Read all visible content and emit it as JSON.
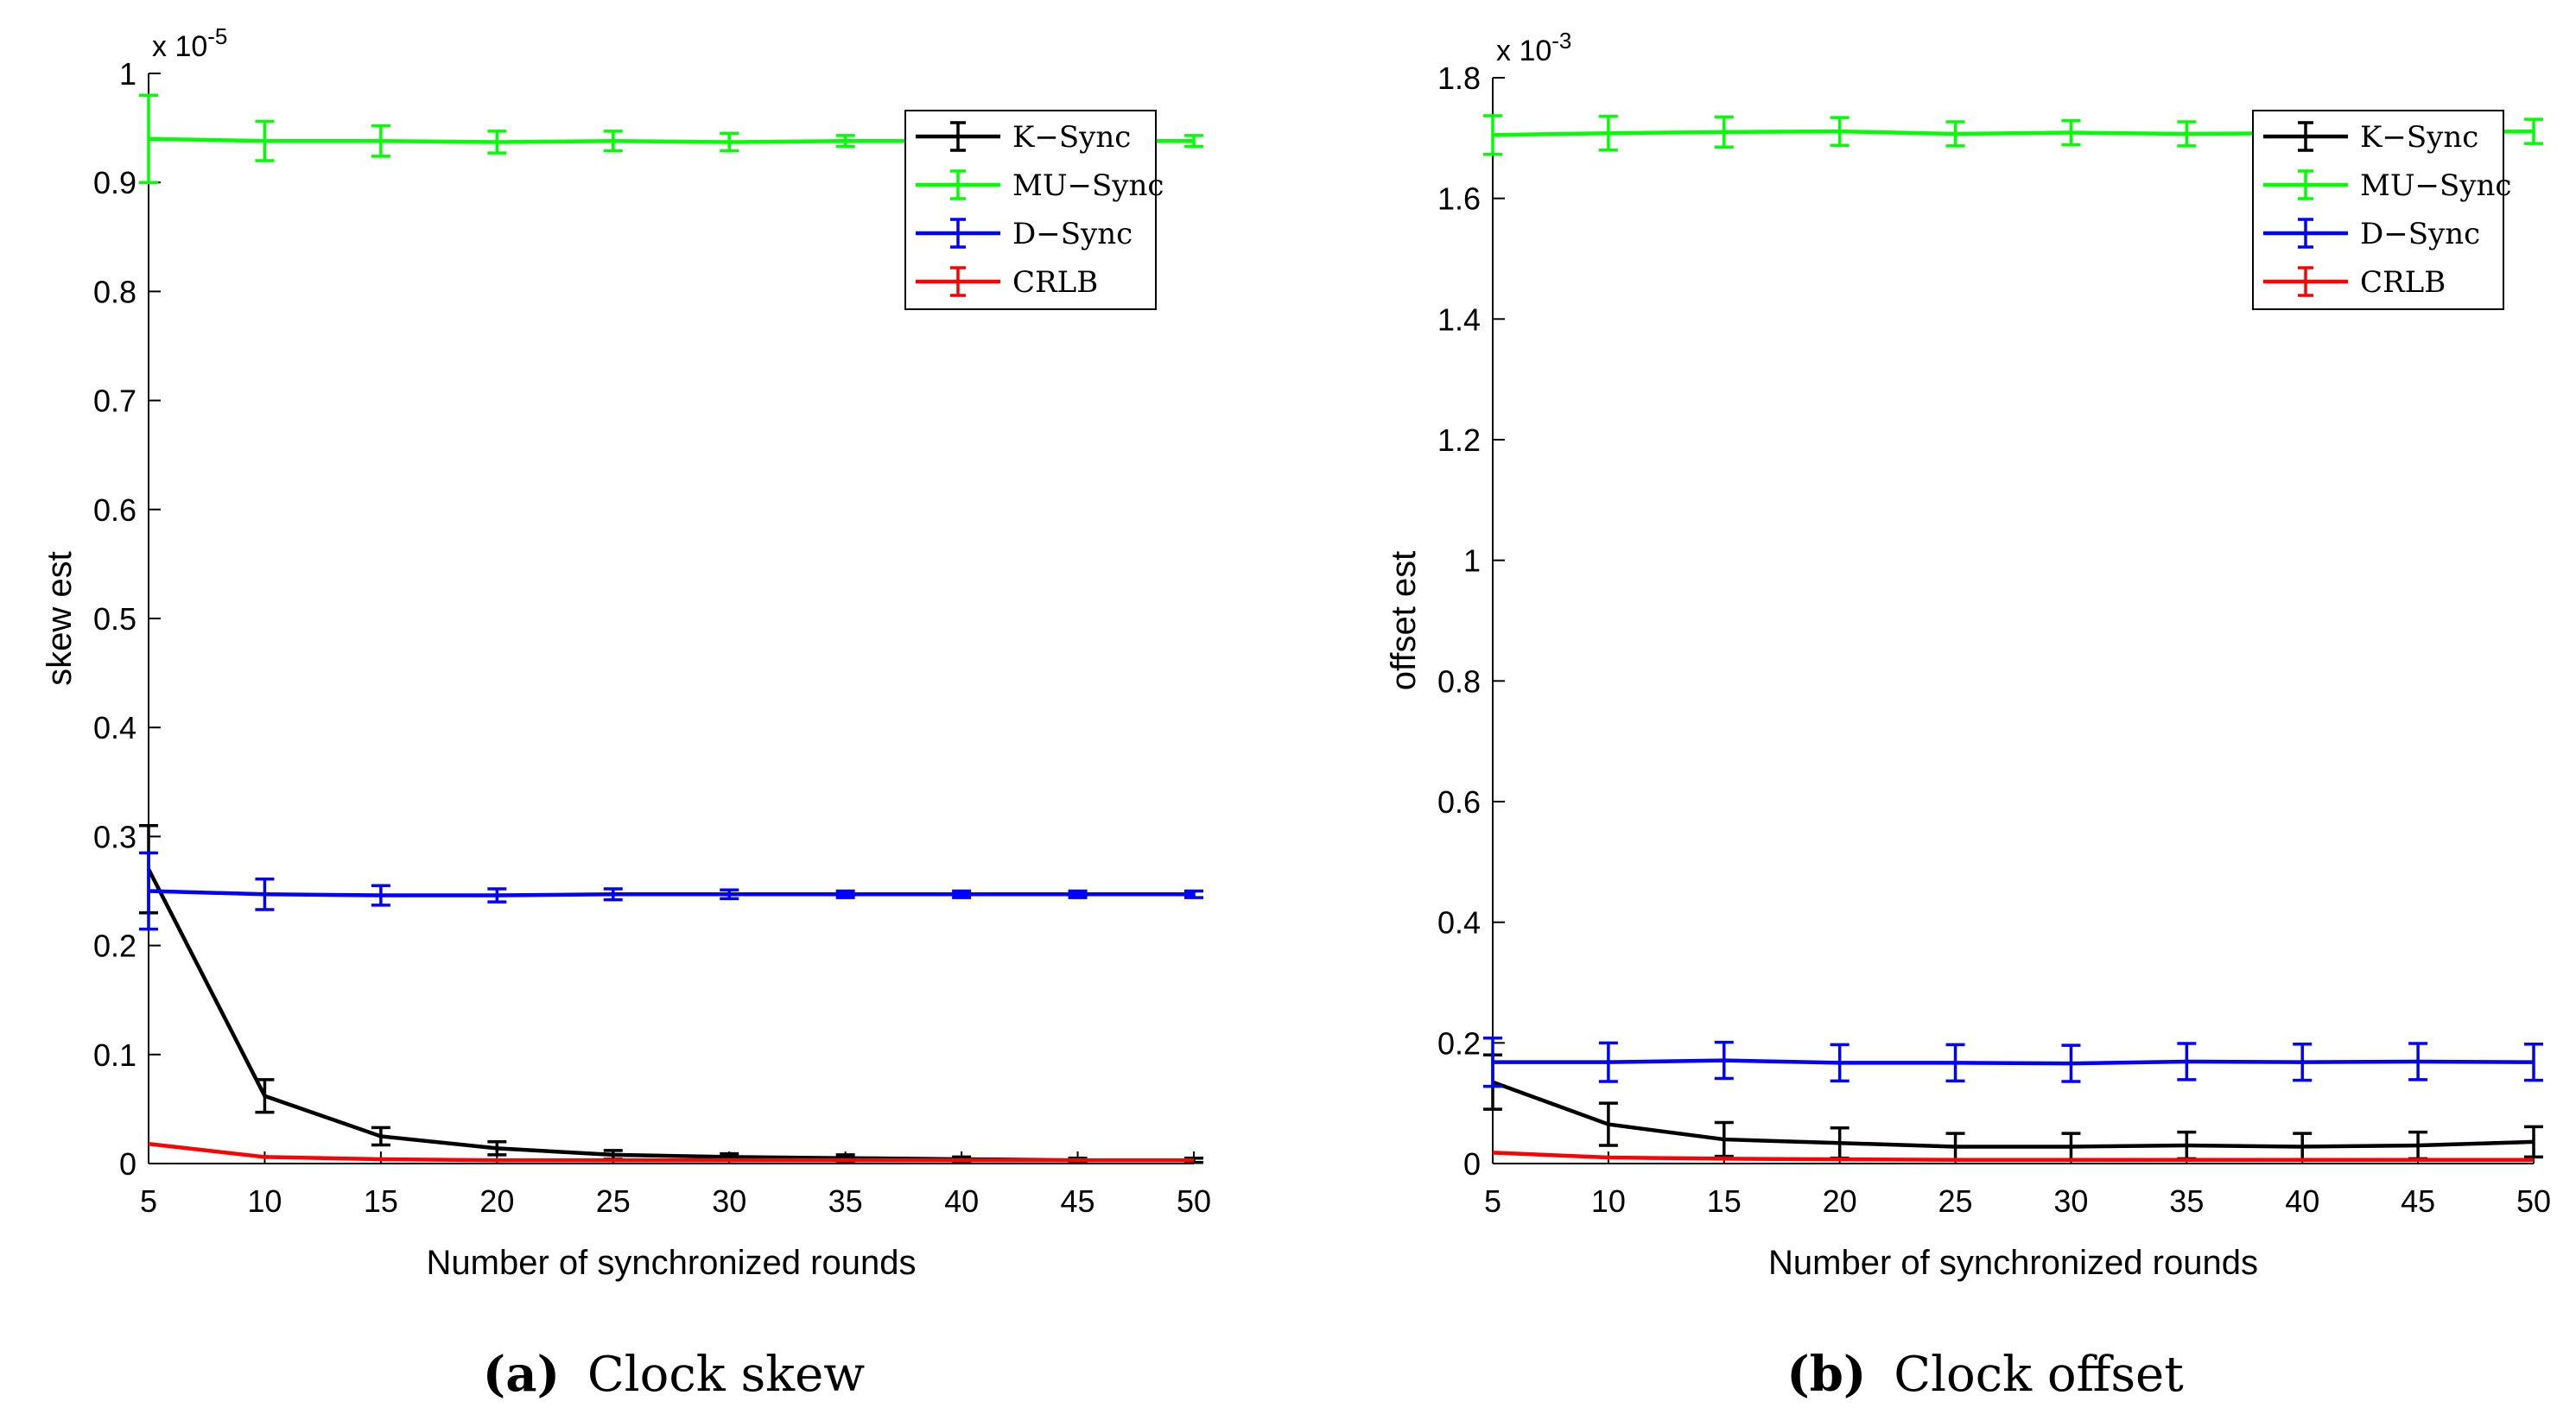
{
  "panels": [
    {
      "id": "a",
      "caption_label": "(a)",
      "caption_text": "Clock skew"
    },
    {
      "id": "b",
      "caption_label": "(b)",
      "caption_text": "Clock offset"
    }
  ],
  "colors": {
    "K-Sync": "#000000",
    "MU-Sync": "#00ff00",
    "D-Sync": "#0000ff",
    "CRLB": "#ff0000",
    "axis": "#000000"
  },
  "chart_data": [
    {
      "type": "line",
      "title": "",
      "xlabel": "Number of  synchronized rounds",
      "ylabel": "skew est",
      "exponent_label": "x 10",
      "exponent_power": "-5",
      "xlim": [
        5,
        50
      ],
      "ylim": [
        0,
        1
      ],
      "xticks": [
        5,
        10,
        15,
        20,
        25,
        30,
        35,
        40,
        45,
        50
      ],
      "yticks": [
        0,
        0.1,
        0.2,
        0.3,
        0.4,
        0.5,
        0.6,
        0.7,
        0.8,
        0.9,
        1
      ],
      "ytick_labels": [
        "0",
        "0.1",
        "0.2",
        "0.3",
        "0.4",
        "0.5",
        "0.6",
        "0.7",
        "0.8",
        "0.9",
        "1"
      ],
      "x": [
        5,
        10,
        15,
        20,
        25,
        30,
        35,
        40,
        45,
        50
      ],
      "legend": [
        "K−Sync",
        "MU−Sync",
        "D−Sync",
        "CRLB"
      ],
      "legend_position": "top-right",
      "series": [
        {
          "name": "K−Sync",
          "key": "K-Sync",
          "values": [
            0.27,
            0.062,
            0.025,
            0.014,
            0.008,
            0.006,
            0.005,
            0.004,
            0.003,
            0.003
          ],
          "errors": [
            0.04,
            0.015,
            0.008,
            0.006,
            0.004,
            0.003,
            0.003,
            0.002,
            0.002,
            0.002
          ]
        },
        {
          "name": "MU−Sync",
          "key": "MU-Sync",
          "values": [
            0.94,
            0.938,
            0.938,
            0.937,
            0.938,
            0.937,
            0.938,
            0.938,
            0.938,
            0.938
          ],
          "errors": [
            0.04,
            0.018,
            0.014,
            0.01,
            0.009,
            0.008,
            0.005,
            0.005,
            0.005,
            0.005
          ]
        },
        {
          "name": "D−Sync",
          "key": "D-Sync",
          "values": [
            0.25,
            0.247,
            0.246,
            0.246,
            0.247,
            0.247,
            0.247,
            0.247,
            0.247,
            0.247
          ],
          "errors": [
            0.035,
            0.014,
            0.009,
            0.006,
            0.005,
            0.004,
            0.003,
            0.003,
            0.003,
            0.003
          ]
        },
        {
          "name": "CRLB",
          "key": "CRLB",
          "values": [
            0.018,
            0.006,
            0.004,
            0.003,
            0.003,
            0.003,
            0.003,
            0.003,
            0.003,
            0.003
          ],
          "errors": [
            0,
            0,
            0,
            0,
            0,
            0,
            0,
            0,
            0,
            0
          ]
        }
      ]
    },
    {
      "type": "line",
      "title": "",
      "xlabel": "Number of synchronized rounds",
      "ylabel": "offset est",
      "exponent_label": "x 10",
      "exponent_power": "-3",
      "xlim": [
        5,
        50
      ],
      "ylim": [
        0,
        1.8
      ],
      "xticks": [
        5,
        10,
        15,
        20,
        25,
        30,
        35,
        40,
        45,
        50
      ],
      "yticks": [
        0,
        0.2,
        0.4,
        0.6,
        0.8,
        1,
        1.2,
        1.4,
        1.6,
        1.8
      ],
      "ytick_labels": [
        "0",
        "0.2",
        "0.4",
        "0.6",
        "0.8",
        "1",
        "1.2",
        "1.4",
        "1.6",
        "1.8"
      ],
      "x": [
        5,
        10,
        15,
        20,
        25,
        30,
        35,
        40,
        45,
        50
      ],
      "legend": [
        "K−Sync",
        "MU−Sync",
        "D−Sync",
        "CRLB"
      ],
      "legend_position": "top-right",
      "series": [
        {
          "name": "K−Sync",
          "key": "K-Sync",
          "values": [
            0.135,
            0.065,
            0.04,
            0.034,
            0.028,
            0.028,
            0.03,
            0.028,
            0.03,
            0.036
          ],
          "errors": [
            0.045,
            0.035,
            0.028,
            0.025,
            0.022,
            0.022,
            0.022,
            0.022,
            0.022,
            0.025
          ]
        },
        {
          "name": "MU−Sync",
          "key": "MU-Sync",
          "values": [
            1.705,
            1.708,
            1.71,
            1.711,
            1.707,
            1.709,
            1.707,
            1.708,
            1.71,
            1.711
          ],
          "errors": [
            0.032,
            0.028,
            0.025,
            0.023,
            0.02,
            0.02,
            0.02,
            0.02,
            0.02,
            0.02
          ]
        },
        {
          "name": "D−Sync",
          "key": "D-Sync",
          "values": [
            0.168,
            0.168,
            0.171,
            0.167,
            0.167,
            0.166,
            0.169,
            0.168,
            0.169,
            0.168
          ],
          "errors": [
            0.04,
            0.032,
            0.03,
            0.03,
            0.03,
            0.03,
            0.03,
            0.03,
            0.03,
            0.03
          ]
        },
        {
          "name": "CRLB",
          "key": "CRLB",
          "values": [
            0.018,
            0.01,
            0.008,
            0.007,
            0.006,
            0.006,
            0.006,
            0.006,
            0.006,
            0.006
          ],
          "errors": [
            0,
            0,
            0,
            0,
            0,
            0,
            0,
            0,
            0,
            0
          ]
        }
      ]
    }
  ]
}
